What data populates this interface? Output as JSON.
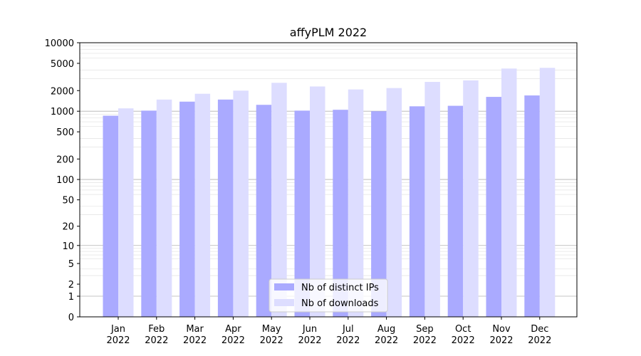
{
  "chart_data": {
    "type": "bar",
    "title": "affyPLM 2022",
    "xlabel": "",
    "ylabel": "",
    "yscale": "log1p",
    "ylim": [
      0,
      10000
    ],
    "yticks": [
      0,
      1,
      2,
      5,
      10,
      20,
      50,
      100,
      200,
      500,
      1000,
      2000,
      5000,
      10000
    ],
    "ytick_labels": [
      "0",
      "1",
      "2",
      "5",
      "10",
      "20",
      "50",
      "100",
      "200",
      "500",
      "1000",
      "2000",
      "5000",
      "10000"
    ],
    "grid": true,
    "legend_position": "bottom-center",
    "categories": [
      [
        "Jan",
        "2022"
      ],
      [
        "Feb",
        "2022"
      ],
      [
        "Mar",
        "2022"
      ],
      [
        "Apr",
        "2022"
      ],
      [
        "May",
        "2022"
      ],
      [
        "Jun",
        "2022"
      ],
      [
        "Jul",
        "2022"
      ],
      [
        "Aug",
        "2022"
      ],
      [
        "Sep",
        "2022"
      ],
      [
        "Oct",
        "2022"
      ],
      [
        "Nov",
        "2022"
      ],
      [
        "Dec",
        "2022"
      ]
    ],
    "series": [
      {
        "name": "Nb of distinct IPs",
        "color": "#aaaaff",
        "values": [
          860,
          1020,
          1380,
          1480,
          1240,
          1020,
          1050,
          1000,
          1180,
          1200,
          1620,
          1700
        ]
      },
      {
        "name": "Nb of downloads",
        "color": "#ddddff",
        "values": [
          1100,
          1480,
          1800,
          2000,
          2600,
          2300,
          2080,
          2180,
          2680,
          2820,
          4200,
          4300
        ]
      }
    ]
  }
}
